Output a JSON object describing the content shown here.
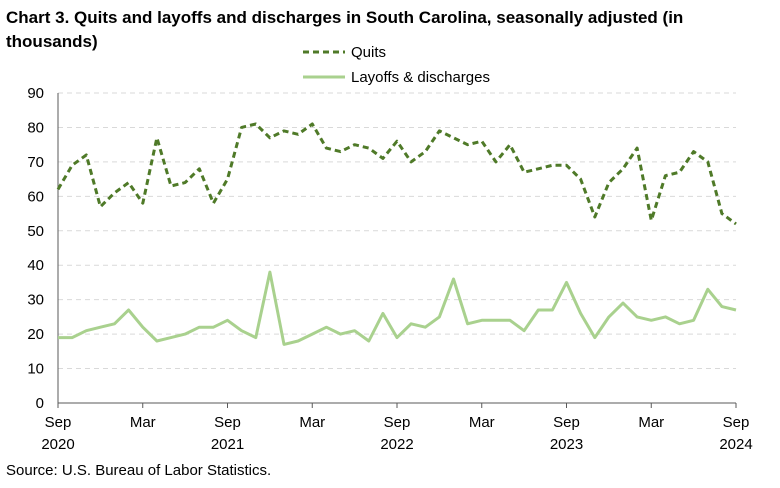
{
  "chart_data": {
    "type": "line",
    "title": "Chart 3. Quits and layoffs and discharges in South Carolina, seasonally adjusted (in thousands)",
    "xlabel": "",
    "ylabel": "",
    "ylim": [
      0,
      90
    ],
    "yticks": [
      "0",
      "10",
      "20",
      "30",
      "40",
      "50",
      "60",
      "70",
      "80",
      "90"
    ],
    "grid": true,
    "legend_position": "top-center",
    "x": [
      "2020-09",
      "2020-10",
      "2020-11",
      "2020-12",
      "2021-01",
      "2021-02",
      "2021-03",
      "2021-04",
      "2021-05",
      "2021-06",
      "2021-07",
      "2021-08",
      "2021-09",
      "2021-10",
      "2021-11",
      "2021-12",
      "2022-01",
      "2022-02",
      "2022-03",
      "2022-04",
      "2022-05",
      "2022-06",
      "2022-07",
      "2022-08",
      "2022-09",
      "2022-10",
      "2022-11",
      "2022-12",
      "2023-01",
      "2023-02",
      "2023-03",
      "2023-04",
      "2023-05",
      "2023-06",
      "2023-07",
      "2023-08",
      "2023-09",
      "2023-10",
      "2023-11",
      "2023-12",
      "2024-01",
      "2024-02",
      "2024-03",
      "2024-04",
      "2024-05",
      "2024-06",
      "2024-07",
      "2024-08",
      "2024-09"
    ],
    "xticks": [
      {
        "month": "Sep",
        "year": "2020",
        "index": 0
      },
      {
        "month": "Mar",
        "year": "",
        "index": 6
      },
      {
        "month": "Sep",
        "year": "2021",
        "index": 12
      },
      {
        "month": "Mar",
        "year": "",
        "index": 18
      },
      {
        "month": "Sep",
        "year": "2022",
        "index": 24
      },
      {
        "month": "Mar",
        "year": "",
        "index": 30
      },
      {
        "month": "Sep",
        "year": "2023",
        "index": 36
      },
      {
        "month": "Mar",
        "year": "",
        "index": 42
      },
      {
        "month": "Sep",
        "year": "2024",
        "index": 48
      }
    ],
    "series": [
      {
        "name": "Quits",
        "color": "#4f7a28",
        "style": "dashed",
        "values": [
          62,
          69,
          72,
          57,
          61,
          64,
          58,
          77,
          63,
          64,
          68,
          58,
          65,
          80,
          81,
          77,
          79,
          78,
          81,
          74,
          73,
          75,
          74,
          71,
          76,
          70,
          73,
          79,
          77,
          75,
          76,
          70,
          75,
          67,
          68,
          69,
          69,
          65,
          54,
          64,
          68,
          74,
          53,
          66,
          67,
          73,
          70,
          55,
          52
        ]
      },
      {
        "name": "Layoffs & discharges",
        "color": "#a9d18e",
        "style": "solid",
        "values": [
          19,
          19,
          21,
          22,
          23,
          27,
          22,
          18,
          19,
          20,
          22,
          22,
          24,
          21,
          19,
          38,
          17,
          18,
          20,
          22,
          20,
          21,
          18,
          26,
          19,
          23,
          22,
          25,
          36,
          23,
          24,
          24,
          24,
          21,
          27,
          27,
          35,
          26,
          19,
          25,
          29,
          25,
          24,
          25,
          23,
          24,
          33,
          28,
          27
        ]
      }
    ]
  },
  "source": "Source: U.S. Bureau of Labor Statistics."
}
